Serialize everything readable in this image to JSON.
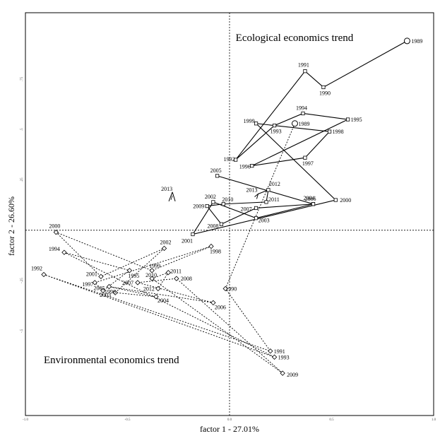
{
  "chart_data": {
    "type": "scatter",
    "xlabel": "factor 1 - 27.01%",
    "ylabel": "factor 2 - 26.60%",
    "xlim": [
      -1.0,
      1.0
    ],
    "ylim": [
      -0.92,
      1.08
    ],
    "x_ticks": [
      {
        "value": -1.0,
        "label": "-1.0"
      },
      {
        "value": -0.5,
        "label": "-0.5"
      },
      {
        "value": 0.0,
        "label": "0.0"
      },
      {
        "value": 0.5,
        "label": "0.5"
      },
      {
        "value": 1.0,
        "label": "1.0"
      }
    ],
    "y_ticks": [
      {
        "value": -0.5,
        "label": "-.5"
      },
      {
        "value": -0.25,
        "label": "-.25"
      },
      {
        "value": 0.25,
        "label": ".25"
      },
      {
        "value": 0.5,
        "label": ".5"
      },
      {
        "value": 0.75,
        "label": ".75"
      }
    ],
    "annotations": [
      {
        "text": "Ecological economics trend",
        "x": 0.03,
        "y": 0.94
      },
      {
        "text": "Environmental economics trend",
        "x": -0.91,
        "y": -0.66
      }
    ],
    "arrow": {
      "label": "2013",
      "x": -0.28,
      "y": 0.2
    },
    "series": [
      {
        "style": "solid",
        "points": [
          {
            "label": "1989",
            "x": 0.87,
            "y": 0.94,
            "marker": "circle"
          },
          {
            "label": "1990",
            "x": 0.46,
            "y": 0.71
          },
          {
            "label": "1991",
            "x": 0.37,
            "y": 0.79
          },
          {
            "label": "1992",
            "x": 0.03,
            "y": 0.35
          },
          {
            "label": "1993",
            "x": 0.22,
            "y": 0.52
          },
          {
            "label": "1994",
            "x": 0.36,
            "y": 0.58
          },
          {
            "label": "1995",
            "x": 0.58,
            "y": 0.55
          },
          {
            "label": "1996",
            "x": 0.11,
            "y": 0.32
          },
          {
            "label": "1997",
            "x": 0.37,
            "y": 0.36
          },
          {
            "label": "1998",
            "x": 0.49,
            "y": 0.49
          },
          {
            "label": "1999",
            "x": 0.13,
            "y": 0.53
          },
          {
            "label": "2000",
            "x": 0.52,
            "y": 0.15
          },
          {
            "label": "2001",
            "x": -0.18,
            "y": -0.02
          },
          {
            "label": "2002",
            "x": -0.08,
            "y": 0.14
          },
          {
            "label": "2003",
            "x": 0.13,
            "y": 0.06
          },
          {
            "label": "2004",
            "x": 0.41,
            "y": 0.13
          },
          {
            "label": "2005",
            "x": -0.06,
            "y": 0.27
          },
          {
            "label": "2006",
            "x": 0.41,
            "y": 0.13
          },
          {
            "label": "2007",
            "x": 0.13,
            "y": 0.11
          },
          {
            "label": "2008",
            "x": -0.04,
            "y": 0.03
          },
          {
            "label": "2009",
            "x": -0.11,
            "y": 0.12
          },
          {
            "label": "2010",
            "x": -0.03,
            "y": 0.13
          },
          {
            "label": "2011",
            "x": 0.18,
            "y": 0.14
          },
          {
            "label": "2012",
            "x": 0.19,
            "y": 0.2
          },
          {
            "label": "2013",
            "x": 0.14,
            "y": 0.18,
            "marker": "arrow"
          }
        ]
      },
      {
        "style": "dashed",
        "points": [
          {
            "label": "1989",
            "x": 0.32,
            "y": 0.53,
            "marker": "circle"
          },
          {
            "label": "1990",
            "x": -0.02,
            "y": -0.29
          },
          {
            "label": "1991",
            "x": 0.2,
            "y": -0.6
          },
          {
            "label": "1992",
            "x": -0.91,
            "y": -0.22
          },
          {
            "label": "1993",
            "x": 0.22,
            "y": -0.63
          },
          {
            "label": "1994",
            "x": -0.81,
            "y": -0.11
          },
          {
            "label": "1995",
            "x": -0.49,
            "y": -0.2
          },
          {
            "label": "1996",
            "x": -0.62,
            "y": -0.3
          },
          {
            "label": "1997",
            "x": -0.66,
            "y": -0.26
          },
          {
            "label": "1998",
            "x": -0.09,
            "y": -0.08
          },
          {
            "label": "1999",
            "x": -0.38,
            "y": -0.2
          },
          {
            "label": "2000",
            "x": -0.85,
            "y": -0.01
          },
          {
            "label": "2001",
            "x": -0.63,
            "y": -0.23
          },
          {
            "label": "2002",
            "x": -0.32,
            "y": -0.09
          },
          {
            "label": "2003",
            "x": -0.56,
            "y": -0.31
          },
          {
            "label": "2004",
            "x": -0.36,
            "y": -0.33
          },
          {
            "label": "2005",
            "x": -0.59,
            "y": -0.28
          },
          {
            "label": "2006",
            "x": -0.08,
            "y": -0.36
          },
          {
            "label": "2007",
            "x": -0.45,
            "y": -0.26
          },
          {
            "label": "2008",
            "x": -0.26,
            "y": -0.24
          },
          {
            "label": "2009",
            "x": 0.26,
            "y": -0.71
          },
          {
            "label": "2010",
            "x": -0.38,
            "y": -0.24
          },
          {
            "label": "2011",
            "x": -0.3,
            "y": -0.21
          },
          {
            "label": "2012",
            "x": -0.35,
            "y": -0.29
          }
        ]
      }
    ]
  }
}
